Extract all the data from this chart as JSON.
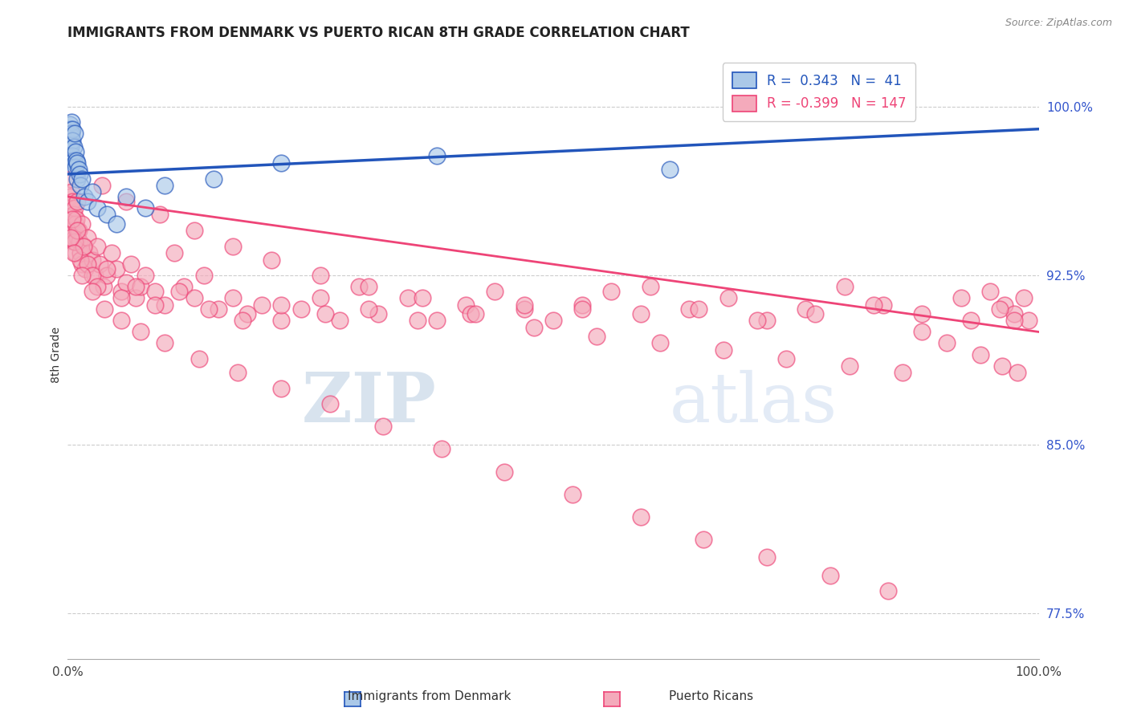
{
  "title": "IMMIGRANTS FROM DENMARK VS PUERTO RICAN 8TH GRADE CORRELATION CHART",
  "source": "Source: ZipAtlas.com",
  "ylabel": "8th Grade",
  "ylabel_ticks": [
    0.775,
    0.85,
    0.925,
    1.0
  ],
  "ylabel_tick_labels": [
    "77.5%",
    "85.0%",
    "92.5%",
    "100.0%"
  ],
  "xlim": [
    0.0,
    1.0
  ],
  "ylim": [
    0.755,
    1.025
  ],
  "blue_R": 0.343,
  "blue_N": 41,
  "pink_R": -0.399,
  "pink_N": 147,
  "blue_color": "#aac8e8",
  "pink_color": "#f4aabb",
  "blue_line_color": "#2255bb",
  "pink_line_color": "#ee4477",
  "watermark_zip": "ZIP",
  "watermark_atlas": "atlas",
  "legend_label_blue": "Immigrants from Denmark",
  "legend_label_pink": "Puerto Ricans",
  "blue_trend_x0": 0.0,
  "blue_trend_y0": 0.97,
  "blue_trend_x1": 1.0,
  "blue_trend_y1": 0.99,
  "pink_trend_x0": 0.0,
  "pink_trend_y0": 0.96,
  "pink_trend_x1": 1.0,
  "pink_trend_y1": 0.9,
  "blue_scatter_x": [
    0.001,
    0.001,
    0.002,
    0.002,
    0.002,
    0.003,
    0.003,
    0.003,
    0.003,
    0.004,
    0.004,
    0.004,
    0.005,
    0.005,
    0.005,
    0.006,
    0.006,
    0.007,
    0.007,
    0.008,
    0.008,
    0.009,
    0.01,
    0.01,
    0.011,
    0.012,
    0.013,
    0.015,
    0.017,
    0.02,
    0.025,
    0.03,
    0.04,
    0.05,
    0.06,
    0.08,
    0.1,
    0.15,
    0.22,
    0.38,
    0.62
  ],
  "blue_scatter_y": [
    0.99,
    0.985,
    0.992,
    0.988,
    0.982,
    0.99,
    0.987,
    0.984,
    0.98,
    0.993,
    0.988,
    0.983,
    0.99,
    0.985,
    0.978,
    0.982,
    0.976,
    0.988,
    0.975,
    0.98,
    0.973,
    0.976,
    0.975,
    0.968,
    0.972,
    0.97,
    0.965,
    0.968,
    0.96,
    0.958,
    0.962,
    0.955,
    0.952,
    0.948,
    0.96,
    0.955,
    0.965,
    0.968,
    0.975,
    0.978,
    0.972
  ],
  "pink_scatter_x": [
    0.002,
    0.003,
    0.003,
    0.004,
    0.004,
    0.005,
    0.005,
    0.006,
    0.006,
    0.007,
    0.007,
    0.008,
    0.008,
    0.009,
    0.01,
    0.01,
    0.011,
    0.012,
    0.013,
    0.015,
    0.015,
    0.017,
    0.018,
    0.02,
    0.022,
    0.025,
    0.028,
    0.03,
    0.033,
    0.037,
    0.04,
    0.045,
    0.05,
    0.055,
    0.06,
    0.065,
    0.07,
    0.075,
    0.08,
    0.09,
    0.1,
    0.11,
    0.12,
    0.13,
    0.14,
    0.155,
    0.17,
    0.185,
    0.2,
    0.22,
    0.24,
    0.26,
    0.28,
    0.3,
    0.32,
    0.35,
    0.38,
    0.41,
    0.44,
    0.47,
    0.5,
    0.53,
    0.56,
    0.6,
    0.64,
    0.68,
    0.72,
    0.76,
    0.8,
    0.84,
    0.88,
    0.92,
    0.95,
    0.965,
    0.975,
    0.985,
    0.99,
    0.005,
    0.007,
    0.01,
    0.013,
    0.016,
    0.02,
    0.025,
    0.03,
    0.04,
    0.055,
    0.07,
    0.09,
    0.115,
    0.145,
    0.18,
    0.22,
    0.265,
    0.31,
    0.36,
    0.415,
    0.47,
    0.53,
    0.59,
    0.65,
    0.71,
    0.77,
    0.83,
    0.88,
    0.93,
    0.96,
    0.975,
    0.035,
    0.06,
    0.095,
    0.13,
    0.17,
    0.21,
    0.26,
    0.31,
    0.365,
    0.42,
    0.48,
    0.545,
    0.61,
    0.675,
    0.74,
    0.805,
    0.86,
    0.905,
    0.94,
    0.962,
    0.978,
    0.003,
    0.006,
    0.015,
    0.025,
    0.038,
    0.055,
    0.075,
    0.1,
    0.135,
    0.175,
    0.22,
    0.27,
    0.325,
    0.385,
    0.45,
    0.52,
    0.59,
    0.655,
    0.72,
    0.785,
    0.845
  ],
  "pink_scatter_y": [
    0.96,
    0.968,
    0.955,
    0.962,
    0.948,
    0.958,
    0.945,
    0.952,
    0.94,
    0.955,
    0.942,
    0.948,
    0.935,
    0.95,
    0.958,
    0.942,
    0.945,
    0.94,
    0.935,
    0.948,
    0.93,
    0.938,
    0.928,
    0.942,
    0.935,
    0.932,
    0.925,
    0.938,
    0.93,
    0.92,
    0.925,
    0.935,
    0.928,
    0.918,
    0.922,
    0.93,
    0.915,
    0.92,
    0.925,
    0.918,
    0.912,
    0.935,
    0.92,
    0.915,
    0.925,
    0.91,
    0.915,
    0.908,
    0.912,
    0.905,
    0.91,
    0.915,
    0.905,
    0.92,
    0.908,
    0.915,
    0.905,
    0.912,
    0.918,
    0.91,
    0.905,
    0.912,
    0.918,
    0.92,
    0.91,
    0.915,
    0.905,
    0.91,
    0.92,
    0.912,
    0.908,
    0.915,
    0.918,
    0.912,
    0.908,
    0.915,
    0.905,
    0.95,
    0.94,
    0.945,
    0.932,
    0.938,
    0.93,
    0.925,
    0.92,
    0.928,
    0.915,
    0.92,
    0.912,
    0.918,
    0.91,
    0.905,
    0.912,
    0.908,
    0.91,
    0.905,
    0.908,
    0.912,
    0.91,
    0.908,
    0.91,
    0.905,
    0.908,
    0.912,
    0.9,
    0.905,
    0.91,
    0.905,
    0.965,
    0.958,
    0.952,
    0.945,
    0.938,
    0.932,
    0.925,
    0.92,
    0.915,
    0.908,
    0.902,
    0.898,
    0.895,
    0.892,
    0.888,
    0.885,
    0.882,
    0.895,
    0.89,
    0.885,
    0.882,
    0.942,
    0.935,
    0.925,
    0.918,
    0.91,
    0.905,
    0.9,
    0.895,
    0.888,
    0.882,
    0.875,
    0.868,
    0.858,
    0.848,
    0.838,
    0.828,
    0.818,
    0.808,
    0.8,
    0.792,
    0.785
  ]
}
